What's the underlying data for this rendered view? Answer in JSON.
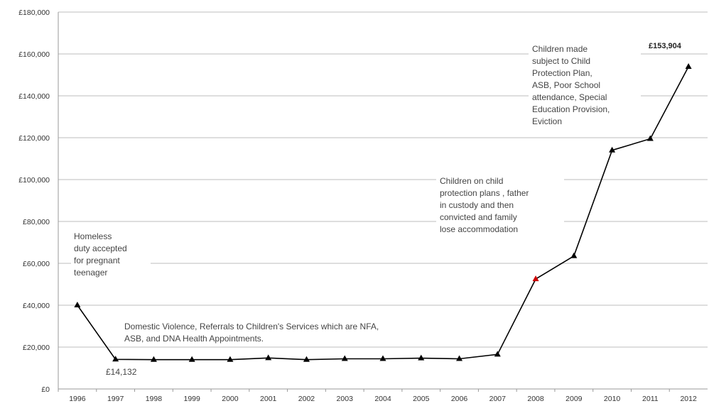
{
  "chart_data": {
    "type": "line",
    "title": "",
    "xlabel": "",
    "ylabel": "",
    "categories": [
      "1996",
      "1997",
      "1998",
      "1999",
      "2000",
      "2001",
      "2002",
      "2003",
      "2004",
      "2005",
      "2006",
      "2007",
      "2008",
      "2009",
      "2010",
      "2011",
      "2012"
    ],
    "values": [
      40000,
      14132,
      14000,
      14000,
      14000,
      14800,
      14000,
      14400,
      14400,
      14700,
      14400,
      16500,
      52500,
      63500,
      114000,
      119500,
      153904
    ],
    "ylim": [
      0,
      180000
    ],
    "yticks": [
      "£0",
      "£20,000",
      "£40,000",
      "£60,000",
      "£80,000",
      "£100,000",
      "£120,000",
      "£140,000",
      "£160,000",
      "£180,000"
    ],
    "grid": true,
    "line_color": "#000000",
    "marker": "triangle",
    "highlight_point": {
      "index": 12,
      "color": "#cc0000"
    },
    "annotations": {
      "homeless": [
        "Homeless",
        "duty accepted",
        "for pregnant",
        "teenager"
      ],
      "domestic": [
        "Domestic  Violence, Referrals to Children's Services which are NFA,",
        "ASB, and DNA Health Appointments."
      ],
      "protection_2008": [
        "Children on child",
        "protection plans , father",
        "in custody and then",
        "convicted and family",
        "lose accommodation"
      ],
      "protection_2012": [
        "Children made",
        "subject to Child",
        "Protection Plan,",
        "ASB, Poor School",
        "attendance, Special",
        "Education Provision,",
        "Eviction"
      ],
      "label_1997": "£14,132",
      "label_2012": "£153,904"
    }
  }
}
